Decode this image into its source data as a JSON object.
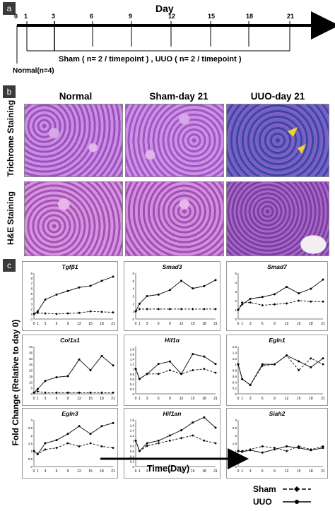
{
  "panels": {
    "a": "a",
    "b": "b",
    "c": "c"
  },
  "timeline": {
    "title": "Day",
    "ticks": [
      "0",
      "1",
      "3",
      "6",
      "9",
      "12",
      "15",
      "18",
      "21"
    ],
    "group_text": "Sham ( n= 2 / timepoint ) , UUO ( n= 2 / timepoint )",
    "normal_text": "Normal(n=4)"
  },
  "histology": {
    "columns": [
      "Normal",
      "Sham-day 21",
      "UUO-day 21"
    ],
    "rows": [
      "Trichrome Staining",
      "H&E Staining"
    ]
  },
  "ylabel": "Fold Change (Relative to day 0)",
  "xlabel": "Time(Day)",
  "legend": {
    "sham": "Sham",
    "uuo": "UUO"
  },
  "colors": {
    "uuo_line": "#1a1a1a",
    "sham_line": "#1a1a1a",
    "trichrome": "#4a4fb0",
    "he": "#b04fb8",
    "arrow": "#f2d22e"
  },
  "chart_data": [
    {
      "type": "line",
      "title": "Tgfβ1",
      "x": [
        0,
        1,
        3,
        6,
        9,
        12,
        15,
        18,
        21
      ],
      "ylim": [
        0,
        9
      ],
      "yticks": [
        "0",
        "1",
        "2",
        "3",
        "4",
        "5",
        "6",
        "7",
        "8",
        "9"
      ],
      "xticks": [
        "0",
        "1",
        "3",
        "6",
        "9",
        "12",
        "15",
        "18",
        "21"
      ],
      "series": [
        {
          "name": "UUO",
          "values": [
            1,
            1.5,
            3.8,
            4.8,
            5.5,
            6.2,
            6.5,
            7.5,
            8.3
          ]
        },
        {
          "name": "Sham",
          "values": [
            1,
            1.2,
            1.1,
            1.0,
            1.1,
            1.2,
            1.5,
            1.4,
            1.3
          ]
        }
      ]
    },
    {
      "type": "line",
      "title": "Smad3",
      "x": [
        0,
        1,
        3,
        6,
        9,
        12,
        15,
        18,
        21
      ],
      "ylim": [
        0,
        6
      ],
      "yticks": [
        "0",
        "1",
        "2",
        "3",
        "4",
        "5",
        "6"
      ],
      "xticks": [
        "0",
        "1",
        "3",
        "6",
        "9",
        "12",
        "15",
        "18",
        "21"
      ],
      "series": [
        {
          "name": "UUO",
          "values": [
            1,
            2.0,
            3.0,
            3.2,
            3.8,
            5.0,
            4.0,
            4.3,
            5.1
          ]
        },
        {
          "name": "Sham",
          "values": [
            1,
            1.3,
            1.3,
            1.3,
            1.3,
            1.3,
            1.3,
            1.3,
            1.3
          ]
        }
      ]
    },
    {
      "type": "line",
      "title": "Smad7",
      "x": [
        0,
        1,
        3,
        6,
        9,
        12,
        15,
        18,
        21
      ],
      "ylim": [
        0,
        5
      ],
      "yticks": [
        "0",
        "1",
        "2",
        "3",
        "4",
        "5"
      ],
      "xticks": [
        "0",
        "1",
        "3",
        "6",
        "9",
        "12",
        "15",
        "18",
        "21"
      ],
      "series": [
        {
          "name": "UUO",
          "values": [
            1,
            1.6,
            2.2,
            2.4,
            2.7,
            3.5,
            2.8,
            3.3,
            4.3
          ]
        },
        {
          "name": "Sham",
          "values": [
            1,
            1.8,
            1.8,
            1.5,
            1.6,
            1.7,
            2.0,
            1.9,
            1.9
          ]
        }
      ]
    },
    {
      "type": "line",
      "title": "Col1a1",
      "x": [
        0,
        1,
        3,
        6,
        9,
        12,
        15,
        18,
        21
      ],
      "ylim": [
        0,
        40
      ],
      "yticks": [
        "0",
        "5",
        "10",
        "15",
        "20",
        "25",
        "30",
        "35",
        "40"
      ],
      "xticks": [
        "0",
        "1",
        "3",
        "6",
        "9",
        "12",
        "15",
        "18",
        "21"
      ],
      "series": [
        {
          "name": "UUO",
          "values": [
            1,
            4,
            11,
            14,
            15,
            29,
            20,
            32,
            24
          ]
        },
        {
          "name": "Sham",
          "values": [
            1,
            2,
            1,
            1,
            1,
            1,
            1,
            1,
            1
          ]
        }
      ]
    },
    {
      "type": "line",
      "title": "Hif1α",
      "x": [
        0,
        1,
        3,
        6,
        9,
        12,
        15,
        18,
        21
      ],
      "ylim": [
        0,
        1.9
      ],
      "yticks": [
        "0",
        "0.2",
        "0.4",
        "0.6",
        "0.8",
        "1",
        "1.2",
        "1.4",
        "1.6",
        "1.8"
      ],
      "xticks": [
        "0",
        "1",
        "3",
        "6",
        "9",
        "12",
        "15",
        "18",
        "21"
      ],
      "series": [
        {
          "name": "UUO",
          "values": [
            1,
            0.6,
            0.8,
            1.2,
            1.3,
            0.8,
            1.6,
            1.5,
            1.2
          ]
        },
        {
          "name": "Sham",
          "values": [
            1,
            0.6,
            0.8,
            0.8,
            0.95,
            0.8,
            0.95,
            1.0,
            0.85
          ]
        }
      ]
    },
    {
      "type": "line",
      "title": "Egln1",
      "x": [
        0,
        1,
        3,
        6,
        9,
        12,
        15,
        18,
        21
      ],
      "ylim": [
        0,
        1.6
      ],
      "yticks": [
        "0",
        "0.2",
        "0.4",
        "0.6",
        "0.8",
        "1",
        "1.2",
        "1.4",
        "1.6"
      ],
      "xticks": [
        "0",
        "1",
        "3",
        "6",
        "9",
        "12",
        "15",
        "18",
        "21"
      ],
      "series": [
        {
          "name": "UUO",
          "values": [
            1,
            0.5,
            0.3,
            1.0,
            1.0,
            1.3,
            1.1,
            0.9,
            1.2
          ]
        },
        {
          "name": "Sham",
          "values": [
            1,
            0.5,
            0.3,
            0.95,
            1.0,
            1.3,
            0.8,
            1.2,
            1.0
          ]
        }
      ]
    },
    {
      "type": "line",
      "title": "Egln3",
      "x": [
        0,
        1,
        3,
        6,
        9,
        12,
        15,
        18,
        21
      ],
      "ylim": [
        0,
        3
      ],
      "yticks": [
        "0",
        "0.5",
        "1",
        "1.5",
        "2",
        "2.5",
        "3"
      ],
      "xticks": [
        "0",
        "1",
        "3",
        "6",
        "9",
        "12",
        "15",
        "18",
        "21"
      ],
      "series": [
        {
          "name": "UUO",
          "values": [
            1,
            0.8,
            1.5,
            1.7,
            2.1,
            2.6,
            2.1,
            2.6,
            2.8
          ]
        },
        {
          "name": "Sham",
          "values": [
            1,
            0.8,
            1.1,
            1.2,
            1.5,
            1.3,
            1.5,
            1.3,
            1.2
          ]
        }
      ]
    },
    {
      "type": "line",
      "title": "Hif1an",
      "x": [
        0,
        1,
        3,
        6,
        9,
        12,
        15,
        18,
        21
      ],
      "ylim": [
        0,
        1.8
      ],
      "yticks": [
        "0",
        "0.2",
        "0.4",
        "0.6",
        "0.8",
        "1",
        "1.2",
        "1.4",
        "1.6",
        "1.8"
      ],
      "xticks": [
        "0",
        "1",
        "3",
        "6",
        "9",
        "12",
        "15",
        "18",
        "21"
      ],
      "series": [
        {
          "name": "UUO",
          "values": [
            1,
            0.6,
            0.9,
            1.0,
            1.2,
            1.4,
            1.7,
            1.9,
            1.5
          ]
        },
        {
          "name": "Sham",
          "values": [
            1,
            0.6,
            0.8,
            0.9,
            1.0,
            1.1,
            1.2,
            1.0,
            0.9
          ]
        }
      ]
    },
    {
      "type": "line",
      "title": "Siah2",
      "x": [
        0,
        1,
        3,
        6,
        9,
        12,
        15,
        18,
        21
      ],
      "ylim": [
        0,
        3
      ],
      "yticks": [
        "0",
        "0.5",
        "1",
        "1.5",
        "2",
        "2.5",
        "3"
      ],
      "xticks": [
        "0",
        "1",
        "3",
        "6",
        "9",
        "12",
        "15",
        "18",
        "21"
      ],
      "series": [
        {
          "name": "UUO",
          "values": [
            1,
            0.95,
            1.05,
            0.9,
            1.1,
            1.3,
            1.2,
            1.05,
            1.2
          ]
        },
        {
          "name": "Sham",
          "values": [
            1,
            1.0,
            1.1,
            1.3,
            1.2,
            1.0,
            1.3,
            1.1,
            1.3
          ]
        }
      ]
    }
  ]
}
